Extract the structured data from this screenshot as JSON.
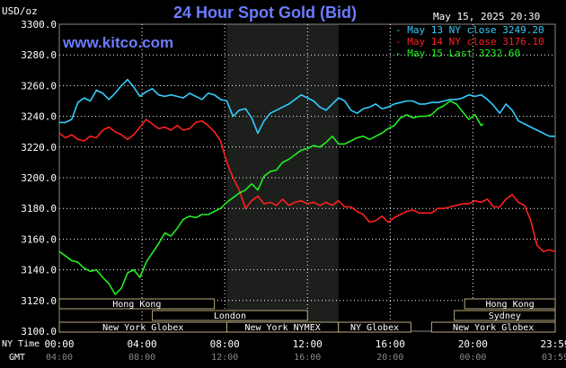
{
  "chart_data": {
    "type": "line",
    "title": "24 Hour Spot Gold (Bid)",
    "ylabel": "USD/oz",
    "date_label": "May 15, 2025 20:30",
    "watermark": "www.kitco.com",
    "ylim": [
      3100,
      3300
    ],
    "y_ticks": [
      "3300.0",
      "3280.0",
      "3260.0",
      "3240.0",
      "3220.0",
      "3200.0",
      "3180.0",
      "3160.0",
      "3140.0",
      "3120.0",
      "3100.0"
    ],
    "x_axis_title": "NY Time",
    "gmt_axis_title": "GMT",
    "x_ticks": [
      "00:00",
      "04:00",
      "08:00",
      "12:00",
      "16:00",
      "20:00",
      "23:59"
    ],
    "gmt_ticks": [
      "04:00",
      "08:00",
      "12:00",
      "16:00",
      "20:00",
      "00:00",
      "03:59"
    ],
    "grid": true,
    "legend_position": "top-right",
    "series": [
      {
        "name": "May 13 NY close 3249.20",
        "color": "#33ccff",
        "x": [
          0,
          0.3,
          0.6,
          0.9,
          1.2,
          1.5,
          1.8,
          2.1,
          2.4,
          2.7,
          3.0,
          3.3,
          3.6,
          3.9,
          4.2,
          4.5,
          4.8,
          5.1,
          5.4,
          5.7,
          6.0,
          6.3,
          6.6,
          6.9,
          7.2,
          7.5,
          7.8,
          8.1,
          8.4,
          8.7,
          9.0,
          9.3,
          9.6,
          9.9,
          10.2,
          10.5,
          10.8,
          11.1,
          11.4,
          11.7,
          12.0,
          12.3,
          12.6,
          12.9,
          13.2,
          13.5,
          13.8,
          14.1,
          14.4,
          14.7,
          15.0,
          15.3,
          15.6,
          15.9,
          16.2,
          16.5,
          16.8,
          17.1,
          17.4,
          17.7,
          18.0,
          18.3,
          18.6,
          18.9,
          19.2,
          19.5,
          19.8,
          20.1,
          20.4,
          20.7,
          21.0,
          21.3,
          21.6,
          21.9,
          22.2,
          22.5,
          22.8,
          23.1,
          23.4,
          23.7,
          23.98
        ],
        "values": [
          3236,
          3236,
          3238,
          3249,
          3252,
          3250,
          3257,
          3255,
          3251,
          3255,
          3260,
          3264,
          3259,
          3253,
          3256,
          3258,
          3254,
          3253,
          3254,
          3253,
          3252,
          3255,
          3253,
          3251,
          3255,
          3254,
          3251,
          3250,
          3240,
          3244,
          3245,
          3239,
          3229,
          3237,
          3242,
          3244,
          3246,
          3248,
          3251,
          3254,
          3252,
          3250,
          3246,
          3244,
          3248,
          3252,
          3250,
          3244,
          3242,
          3245,
          3246,
          3248,
          3245,
          3246,
          3248,
          3249,
          3250,
          3250,
          3248,
          3248,
          3249,
          3249,
          3250,
          3251,
          3251,
          3252,
          3254,
          3253,
          3254,
          3251,
          3247,
          3242,
          3248,
          3244,
          3237,
          3235,
          3233,
          3231,
          3229,
          3227,
          3227
        ]
      },
      {
        "name": "May 14 NY close 3176.10",
        "color": "#ff2020",
        "x": [
          0,
          0.3,
          0.6,
          0.9,
          1.2,
          1.5,
          1.8,
          2.1,
          2.4,
          2.7,
          3.0,
          3.3,
          3.6,
          3.9,
          4.2,
          4.5,
          4.8,
          5.1,
          5.4,
          5.7,
          6.0,
          6.3,
          6.6,
          6.9,
          7.2,
          7.5,
          7.8,
          8.1,
          8.4,
          8.7,
          9.0,
          9.3,
          9.6,
          9.9,
          10.2,
          10.5,
          10.8,
          11.1,
          11.4,
          11.7,
          12.0,
          12.3,
          12.6,
          12.9,
          13.2,
          13.5,
          13.8,
          14.1,
          14.4,
          14.7,
          15.0,
          15.3,
          15.6,
          15.9,
          16.2,
          16.5,
          16.8,
          17.1,
          17.4,
          17.7,
          18.0,
          18.3,
          18.6,
          18.9,
          19.2,
          19.5,
          19.8,
          20.1,
          20.4,
          20.7,
          21.0,
          21.3,
          21.6,
          21.9,
          22.2,
          22.5,
          22.8,
          23.1,
          23.4,
          23.7,
          23.98
        ],
        "values": [
          3229,
          3226,
          3228,
          3225,
          3224,
          3227,
          3226,
          3231,
          3233,
          3230,
          3228,
          3225,
          3228,
          3233,
          3238,
          3235,
          3232,
          3233,
          3231,
          3234,
          3231,
          3232,
          3236,
          3237,
          3234,
          3230,
          3224,
          3210,
          3200,
          3192,
          3180,
          3185,
          3188,
          3183,
          3184,
          3182,
          3186,
          3182,
          3184,
          3185,
          3183,
          3184,
          3182,
          3184,
          3182,
          3185,
          3181,
          3181,
          3178,
          3176,
          3171,
          3172,
          3175,
          3171,
          3174,
          3176,
          3178,
          3179,
          3177,
          3177,
          3177,
          3180,
          3180,
          3181,
          3182,
          3183,
          3183,
          3185,
          3184,
          3186,
          3181,
          3181,
          3186,
          3189,
          3184,
          3182,
          3172,
          3156,
          3152,
          3153,
          3152
        ]
      },
      {
        "name": "May 15 Last 3232.60",
        "color": "#22ee22",
        "x": [
          0,
          0.3,
          0.6,
          0.9,
          1.2,
          1.5,
          1.8,
          2.1,
          2.4,
          2.7,
          3.0,
          3.3,
          3.6,
          3.9,
          4.2,
          4.5,
          4.8,
          5.1,
          5.4,
          5.7,
          6.0,
          6.3,
          6.6,
          6.9,
          7.2,
          7.5,
          7.8,
          8.1,
          8.4,
          8.7,
          9.0,
          9.3,
          9.6,
          9.9,
          10.2,
          10.5,
          10.8,
          11.1,
          11.4,
          11.7,
          12.0,
          12.3,
          12.6,
          12.9,
          13.2,
          13.5,
          13.8,
          14.1,
          14.4,
          14.7,
          15.0,
          15.3,
          15.6,
          15.9,
          16.2,
          16.5,
          16.8,
          17.1,
          17.4,
          17.7,
          18.0,
          18.3,
          18.6,
          18.9,
          19.2,
          19.5,
          19.8,
          20.1,
          20.4,
          20.5
        ],
        "values": [
          3152,
          3149,
          3146,
          3145,
          3141,
          3139,
          3140,
          3135,
          3131,
          3124,
          3128,
          3138,
          3140,
          3135,
          3145,
          3151,
          3157,
          3164,
          3162,
          3167,
          3173,
          3175,
          3174,
          3176,
          3176,
          3178,
          3180,
          3184,
          3187,
          3190,
          3192,
          3196,
          3192,
          3201,
          3204,
          3205,
          3210,
          3212,
          3215,
          3218,
          3219,
          3221,
          3220,
          3223,
          3227,
          3222,
          3222,
          3224,
          3226,
          3227,
          3225,
          3227,
          3229,
          3232,
          3234,
          3239,
          3241,
          3239,
          3240,
          3240,
          3241,
          3245,
          3247,
          3250,
          3248,
          3243,
          3238,
          3241,
          3234,
          3235
        ]
      }
    ],
    "sessions": {
      "row1": [
        {
          "label": "Hong Kong",
          "start": 0,
          "end": 7.5
        },
        {
          "label": "Hong Kong",
          "start": 19.6,
          "end": 23.98
        }
      ],
      "row2": [
        {
          "label": "London",
          "start": 4.5,
          "end": 12.0
        },
        {
          "label": "Sydney",
          "start": 19.1,
          "end": 23.98
        }
      ],
      "row3": [
        {
          "label": "New York Globex",
          "start": 0,
          "end": 8.1
        },
        {
          "label": "New York NYMEX",
          "start": 8.1,
          "end": 13.5
        },
        {
          "label": "NY Globex",
          "start": 13.5,
          "end": 17.0
        },
        {
          "label": "New York Globex",
          "start": 18.0,
          "end": 23.98
        }
      ]
    },
    "highlight_range": [
      8.1,
      13.5
    ]
  }
}
